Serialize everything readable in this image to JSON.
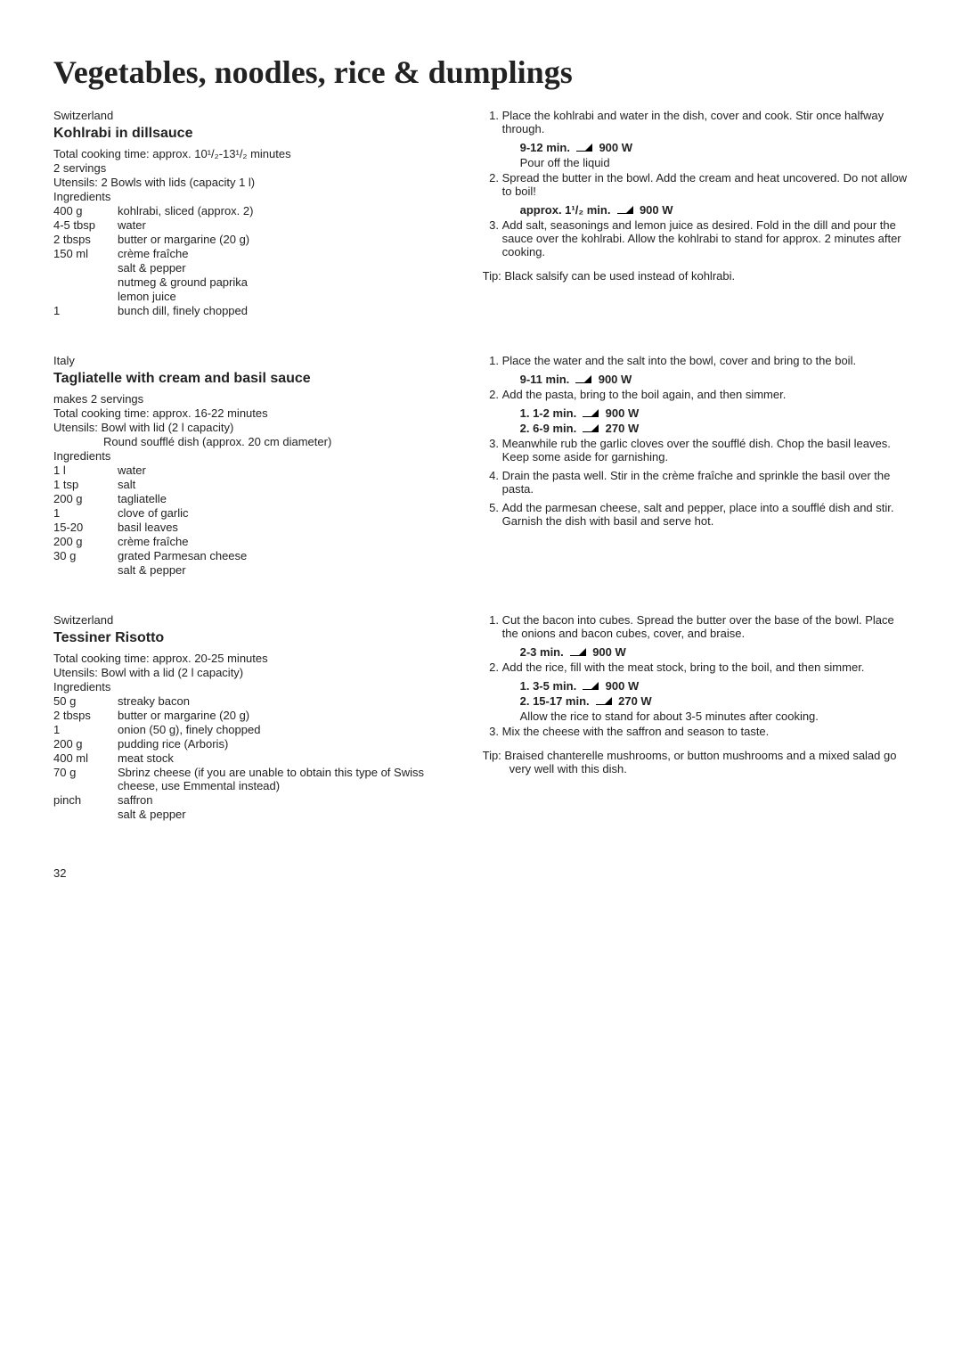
{
  "page_title": "Vegetables, noodles, rice & dumplings",
  "page_number": "32",
  "recipes": [
    {
      "country": "Switzerland",
      "title": "Kohlrabi in dillsauce",
      "meta": [
        "Total cooking time: approx. 10¹/₂-13¹/₂ minutes",
        "2 servings",
        "Utensils: 2 Bowls with lids (capacity 1 l)",
        "Ingredients"
      ],
      "ingredients": [
        [
          "400 g",
          "kohlrabi, sliced (approx. 2)"
        ],
        [
          "4-5 tbsp",
          "water"
        ],
        [
          "2 tbsps",
          "butter or margarine (20 g)"
        ],
        [
          "150 ml",
          "crème fraîche"
        ],
        [
          "",
          "salt & pepper"
        ],
        [
          "",
          "nutmeg & ground paprika"
        ],
        [
          "",
          "lemon juice"
        ],
        [
          "1",
          "bunch dill, finely chopped"
        ]
      ],
      "steps": [
        {
          "text": "Place the kohlrabi and water in the dish, cover and cook. Stir once halfway through.",
          "sublines": [
            {
              "bold": true,
              "parts": [
                "9-12 min.",
                "ICON",
                "900 W"
              ]
            },
            {
              "bold": false,
              "text": "Pour off the liquid"
            }
          ]
        },
        {
          "text": "Spread the butter in the bowl. Add the cream and heat uncovered. Do not allow to boil!",
          "sublines": [
            {
              "bold": true,
              "parts": [
                "approx. 1¹/₂ min.",
                "ICON",
                "900 W"
              ]
            }
          ]
        },
        {
          "text": "Add salt, seasonings and lemon juice as desired. Fold in the dill and pour the sauce over the kohlrabi. Allow the kohlrabi to stand for approx. 2 minutes after cooking."
        }
      ],
      "tip": "Tip: Black salsify can be used instead of kohlrabi."
    },
    {
      "country": "Italy",
      "title": "Tagliatelle with cream and basil sauce",
      "meta": [
        "makes 2 servings",
        "Total cooking time: approx. 16-22 minutes",
        "Utensils: Bowl with lid (2 l capacity)"
      ],
      "meta_indented": [
        "Round soufflé dish (approx. 20 cm diameter)"
      ],
      "meta2": [
        "Ingredients"
      ],
      "ingredients": [
        [
          "1 l",
          "water"
        ],
        [
          "1 tsp",
          "salt"
        ],
        [
          "200 g",
          "tagliatelle"
        ],
        [
          "1",
          "clove of garlic"
        ],
        [
          "15-20",
          "basil leaves"
        ],
        [
          "200 g",
          "crème fraîche"
        ],
        [
          "30 g",
          "grated Parmesan cheese"
        ],
        [
          "",
          "salt & pepper"
        ]
      ],
      "steps": [
        {
          "text": "Place the water and the salt into the bowl, cover and bring to the boil.",
          "sublines": [
            {
              "bold": true,
              "parts": [
                "9-11 min.",
                "ICON",
                "900 W"
              ]
            }
          ]
        },
        {
          "text": "Add the pasta, bring to the boil again, and then simmer.",
          "sublines": [
            {
              "bold": true,
              "parts": [
                "1. 1-2 min.",
                "ICON",
                "900 W"
              ]
            },
            {
              "bold": true,
              "parts": [
                "2. 6-9 min.",
                "ICON",
                "270 W"
              ]
            }
          ]
        },
        {
          "text": "Meanwhile rub the garlic cloves over the soufflé dish. Chop the basil leaves. Keep some aside for garnishing."
        },
        {
          "text": "Drain the pasta well. Stir in the crème fraîche and sprinkle the basil over the pasta."
        },
        {
          "text": "Add the parmesan cheese, salt and pepper, place into a soufflé dish and stir. Garnish the dish with basil and serve hot."
        }
      ]
    },
    {
      "country": "Switzerland",
      "title": "Tessiner Risotto",
      "meta": [
        "Total cooking time: approx. 20-25 minutes",
        "Utensils: Bowl with a lid (2 l capacity)",
        "Ingredients"
      ],
      "ingredients": [
        [
          "50 g",
          "streaky bacon"
        ],
        [
          "2 tbsps",
          "butter or margarine (20 g)"
        ],
        [
          "1",
          "onion (50 g), finely chopped"
        ],
        [
          "200 g",
          "pudding rice (Arboris)"
        ],
        [
          "400 ml",
          "meat stock"
        ],
        [
          "70 g",
          "Sbrinz cheese (if you are unable to obtain this type of Swiss cheese, use Emmental instead)"
        ],
        [
          "pinch",
          "saffron"
        ],
        [
          "",
          "salt & pepper"
        ]
      ],
      "steps": [
        {
          "text": "Cut the bacon into cubes. Spread the butter over the base of the bowl. Place the onions and bacon cubes, cover, and braise.",
          "sublines": [
            {
              "bold": true,
              "parts": [
                "2-3 min.",
                "ICON",
                "900 W"
              ]
            }
          ]
        },
        {
          "text": "Add the rice, fill with the meat stock, bring to the boil, and then simmer.",
          "sublines": [
            {
              "bold": true,
              "parts": [
                "1. 3-5 min.",
                "ICON",
                "900 W"
              ]
            },
            {
              "bold": true,
              "parts": [
                "2. 15-17 min.",
                "ICON",
                "270 W"
              ]
            },
            {
              "bold": false,
              "text": "Allow the rice to stand for about 3-5 minutes after cooking."
            }
          ]
        },
        {
          "text": "Mix the cheese with the saffron and season to taste."
        }
      ],
      "tip": "Tip: Braised chanterelle mushrooms, or button mushrooms and a mixed salad go very well with this dish."
    }
  ]
}
